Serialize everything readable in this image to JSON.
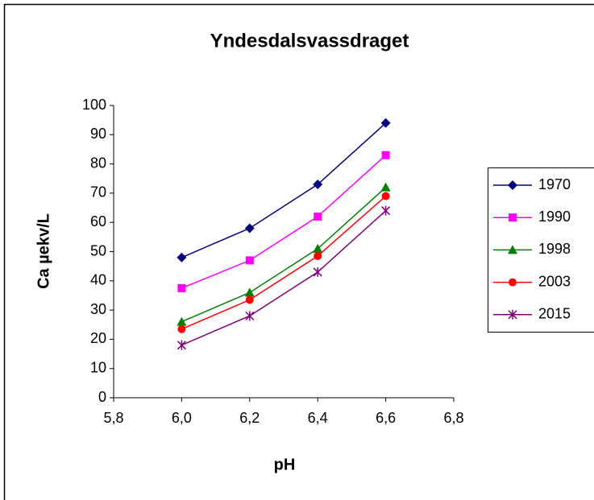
{
  "chart_data": {
    "type": "line",
    "title": "Yndesdalsvassdraget",
    "x_label": "pH",
    "y_label": "Ca µekv/L",
    "x": [
      6.0,
      6.2,
      6.4,
      6.6
    ],
    "series": [
      {
        "name": "1970",
        "color": "#000080",
        "marker": "diamond",
        "values": [
          48,
          58,
          73,
          94
        ]
      },
      {
        "name": "1990",
        "color": "#ff00ff",
        "marker": "square",
        "values": [
          37.5,
          47,
          62,
          83
        ]
      },
      {
        "name": "1998",
        "color": "#008000",
        "marker": "triangle",
        "values": [
          26,
          36,
          51,
          72
        ]
      },
      {
        "name": "2003",
        "color": "#ff0000",
        "marker": "circle",
        "values": [
          23.5,
          33.5,
          48.5,
          69
        ]
      },
      {
        "name": "2015",
        "color": "#800080",
        "marker": "star",
        "values": [
          18,
          28,
          43,
          64
        ]
      }
    ],
    "xlim": [
      5.8,
      6.8
    ],
    "xticks": [
      {
        "value": 5.8,
        "label": "5,8"
      },
      {
        "value": 6.0,
        "label": "6,0"
      },
      {
        "value": 6.2,
        "label": "6,2"
      },
      {
        "value": 6.4,
        "label": "6,4"
      },
      {
        "value": 6.6,
        "label": "6,6"
      },
      {
        "value": 6.8,
        "label": "6,8"
      }
    ],
    "ylim": [
      0,
      100
    ],
    "yticks": [
      0,
      10,
      20,
      30,
      40,
      50,
      60,
      70,
      80,
      90,
      100
    ],
    "grid": false,
    "legend": "right"
  }
}
